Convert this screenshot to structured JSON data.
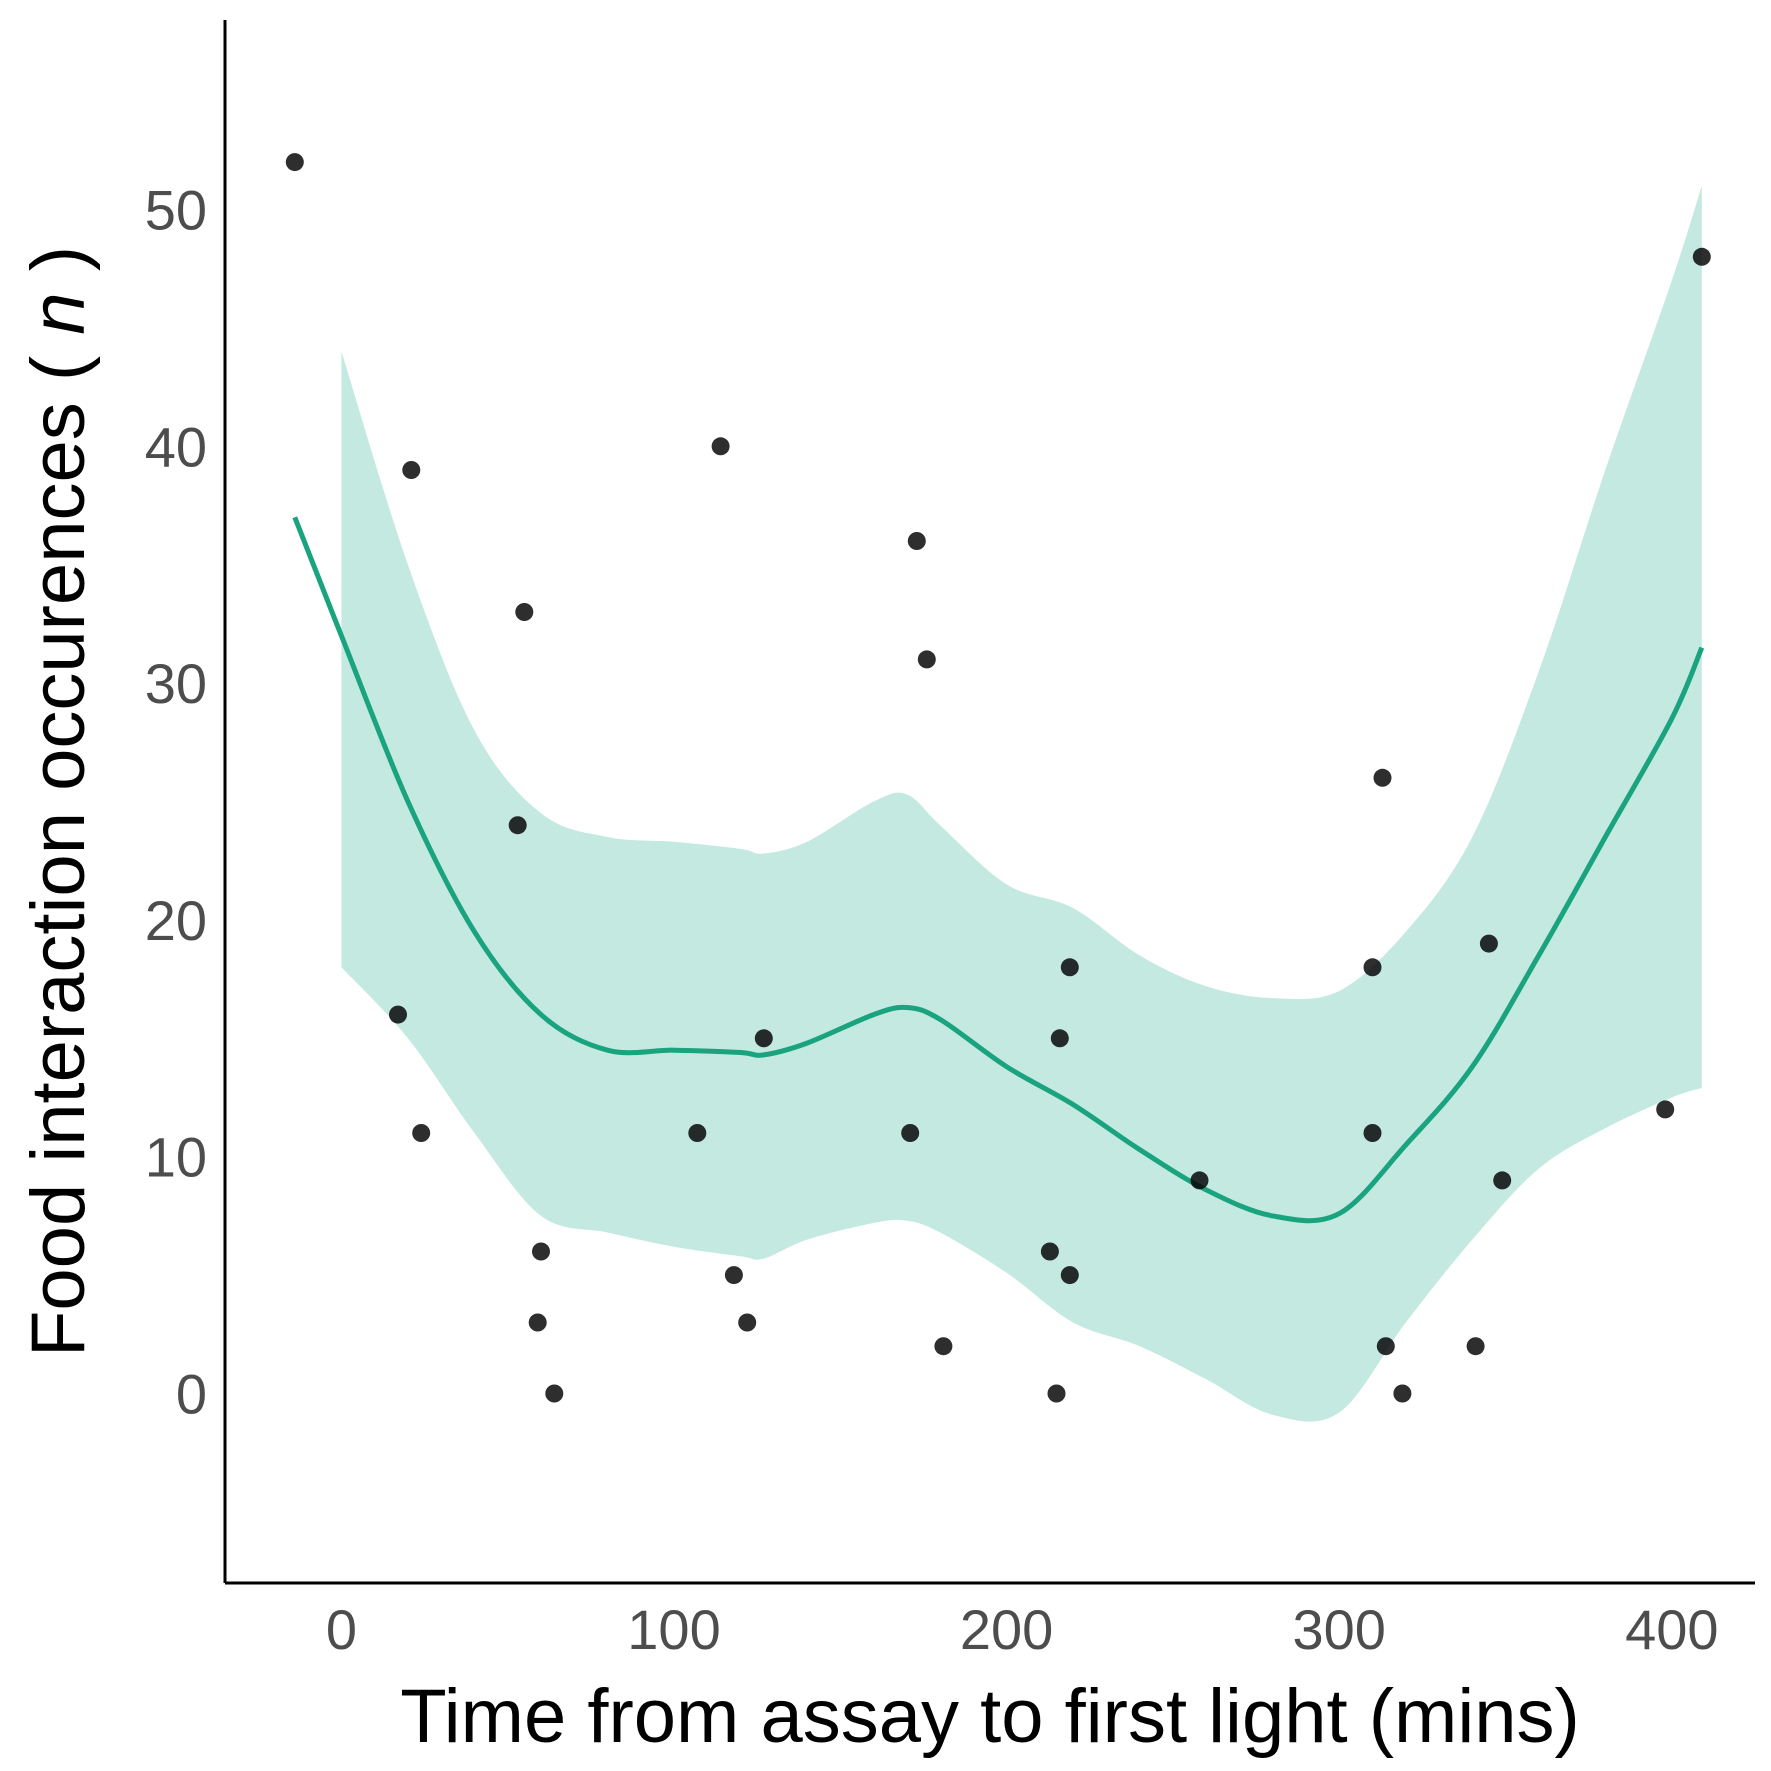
{
  "chart_data": {
    "type": "scatter",
    "title": "",
    "xlabel": "Time from assay to first light (mins)",
    "ylabel": "Food interaction occurences",
    "ylabel_var": "n",
    "xlim": [
      -35,
      425
    ],
    "ylim": [
      -8,
      58
    ],
    "x_ticks": [
      0,
      100,
      200,
      300,
      400
    ],
    "y_ticks": [
      0,
      10,
      20,
      30,
      40,
      50
    ],
    "grid": false,
    "legend": "none",
    "colors": {
      "point": "#000000",
      "smooth_line": "#1aa37f",
      "ribbon": "#c4e9e0",
      "axis": "#000000",
      "tick_label": "#4d4d4d"
    },
    "points": [
      {
        "x": -14,
        "y": 52
      },
      {
        "x": 21,
        "y": 39
      },
      {
        "x": 17,
        "y": 16
      },
      {
        "x": 24,
        "y": 11
      },
      {
        "x": 55,
        "y": 33
      },
      {
        "x": 53,
        "y": 24
      },
      {
        "x": 60,
        "y": 6
      },
      {
        "x": 59,
        "y": 3
      },
      {
        "x": 64,
        "y": 0
      },
      {
        "x": 114,
        "y": 40
      },
      {
        "x": 107,
        "y": 11
      },
      {
        "x": 118,
        "y": 5
      },
      {
        "x": 122,
        "y": 3
      },
      {
        "x": 127,
        "y": 15
      },
      {
        "x": 173,
        "y": 36
      },
      {
        "x": 176,
        "y": 31
      },
      {
        "x": 171,
        "y": 11
      },
      {
        "x": 181,
        "y": 2
      },
      {
        "x": 219,
        "y": 18
      },
      {
        "x": 216,
        "y": 15
      },
      {
        "x": 213,
        "y": 6
      },
      {
        "x": 219,
        "y": 5
      },
      {
        "x": 215,
        "y": 0
      },
      {
        "x": 258,
        "y": 9
      },
      {
        "x": 313,
        "y": 26
      },
      {
        "x": 310,
        "y": 18
      },
      {
        "x": 310,
        "y": 11
      },
      {
        "x": 314,
        "y": 2
      },
      {
        "x": 319,
        "y": 0
      },
      {
        "x": 345,
        "y": 19
      },
      {
        "x": 349,
        "y": 9
      },
      {
        "x": 341,
        "y": 2
      },
      {
        "x": 398,
        "y": 12
      },
      {
        "x": 409,
        "y": 48
      }
    ],
    "smooth": {
      "x": [
        -14,
        0,
        20,
        40,
        60,
        80,
        100,
        120,
        127,
        140,
        160,
        170,
        180,
        200,
        220,
        240,
        260,
        280,
        300,
        320,
        340,
        360,
        380,
        400,
        409
      ],
      "y": [
        37,
        32,
        25,
        19.5,
        16,
        14.5,
        14.5,
        14.4,
        14.3,
        14.8,
        16,
        16.3,
        15.8,
        13.8,
        12.2,
        10.3,
        8.6,
        7.5,
        7.6,
        10.5,
        13.8,
        18.5,
        23.5,
        28.5,
        31.5
      ],
      "upper": [
        52,
        44,
        35,
        28,
        24.5,
        23.5,
        23.3,
        23,
        22.8,
        23.3,
        25,
        25.3,
        24,
        21.5,
        20.5,
        18.5,
        17.2,
        16.7,
        17,
        19.5,
        23.5,
        30.5,
        39,
        47,
        51
      ],
      "lower": [
        19,
        18,
        15,
        11,
        7.5,
        6.8,
        6.2,
        5.8,
        5.7,
        6.5,
        7.2,
        7.3,
        6.8,
        5.1,
        3,
        2,
        0.6,
        -0.9,
        -0.8,
        3,
        6.5,
        9.5,
        11.2,
        12.5,
        12.9
      ]
    }
  }
}
